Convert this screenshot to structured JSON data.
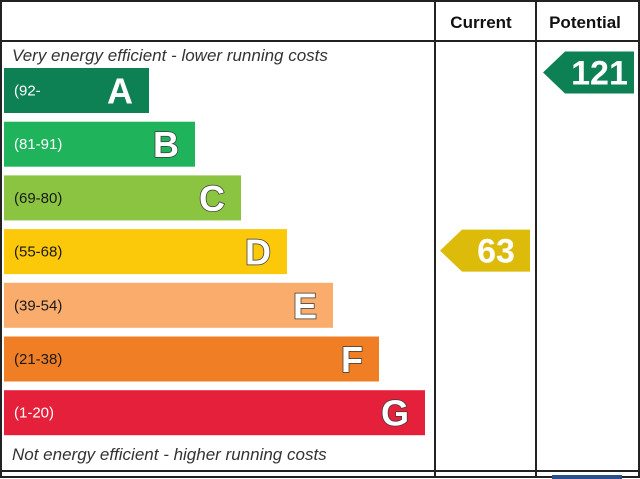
{
  "header": {
    "current_label": "Current",
    "potential_label": "Potential"
  },
  "captions": {
    "top": "Very energy efficient - lower running costs",
    "bottom": "Not energy efficient - higher running costs"
  },
  "chart_data": {
    "type": "bar",
    "bands": [
      {
        "letter": "A",
        "range": "(92-",
        "color": "#0e8154"
      },
      {
        "letter": "B",
        "range": "(81-91)",
        "color": "#1fb35c"
      },
      {
        "letter": "C",
        "range": "(69-80)",
        "color": "#8ac440"
      },
      {
        "letter": "D",
        "range": "(55-68)",
        "color": "#fcc80a"
      },
      {
        "letter": "E",
        "range": "(39-54)",
        "color": "#f9ac6c"
      },
      {
        "letter": "F",
        "range": "(21-38)",
        "color": "#f07e24"
      },
      {
        "letter": "G",
        "range": "(1-20)",
        "color": "#e4203a"
      }
    ],
    "current": {
      "value": "63",
      "band": "D",
      "color": "#dcbb0a"
    },
    "potential": {
      "value": "121",
      "band": "A",
      "color": "#0e8154"
    }
  }
}
